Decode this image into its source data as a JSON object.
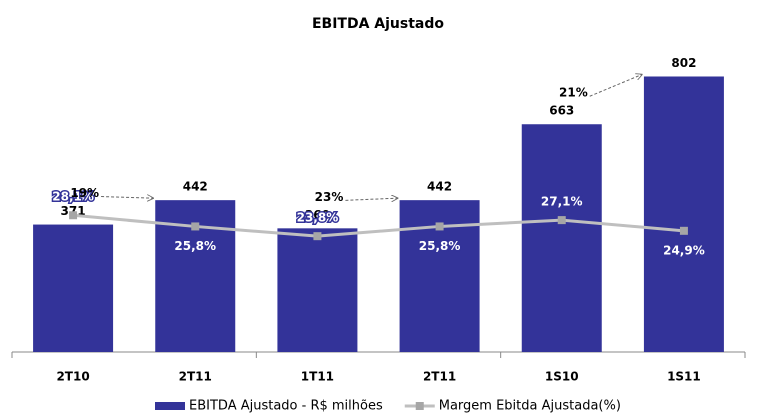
{
  "chart_data": {
    "type": "bar_line",
    "title": "EBITDA Ajustado",
    "categories": [
      "2T10",
      "2T11",
      "1T11",
      "2T11",
      "1S10",
      "1S11"
    ],
    "series": [
      {
        "name": "EBITDA Ajustado - R$ milhões",
        "color": "#333399",
        "type": "bar",
        "values": [
          371,
          442,
          360,
          442,
          663,
          802
        ]
      },
      {
        "name": "Margem Ebitda Ajustada(%)",
        "color": "#bfbfbf",
        "type": "line",
        "axis": "y2",
        "values": [
          28.1,
          25.8,
          23.8,
          25.8,
          27.1,
          24.9
        ],
        "value_labels": [
          "28,1%",
          "25,8%",
          "23,8%",
          "25,8%",
          "27,1%",
          "24,9%"
        ]
      }
    ],
    "ylim": [
      0,
      850
    ],
    "y2lim": [
      0,
      60
    ],
    "annotations": [
      "19%",
      "23%",
      "21%"
    ],
    "legend": "bottom"
  }
}
